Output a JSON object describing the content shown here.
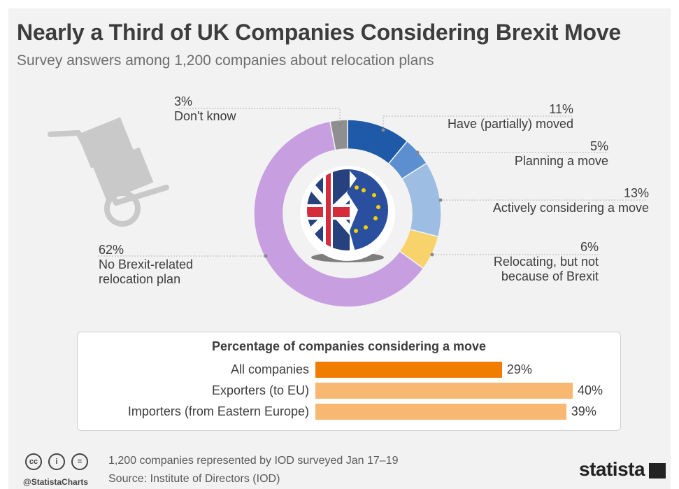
{
  "title": "Nearly a Third of UK Companies Considering Brexit Move",
  "subtitle": "Survey answers among 1,200 companies about relocation plans",
  "chart_data": [
    {
      "type": "pie",
      "variant": "donut",
      "slices": [
        {
          "label": "Have (partially) moved",
          "value": 11,
          "pct_label": "11%",
          "color": "#1f5aa8"
        },
        {
          "label": "Planning a move",
          "value": 5,
          "pct_label": "5%",
          "color": "#5b8fd0"
        },
        {
          "label": "Actively considering a move",
          "value": 13,
          "pct_label": "13%",
          "color": "#9dbde3"
        },
        {
          "label": "Relocating, but not because of Brexit",
          "value": 6,
          "pct_label": "6%",
          "color": "#f8d26a"
        },
        {
          "label": "No Brexit-related relocation plan",
          "value": 62,
          "pct_label": "62%",
          "color": "#c79ee0"
        },
        {
          "label": "Don't know",
          "value": 3,
          "pct_label": "3%",
          "color": "#8f8f8f"
        }
      ]
    },
    {
      "type": "bar",
      "orientation": "horizontal",
      "title": "Percentage of companies considering a move",
      "categories": [
        "All companies",
        "Exporters (to EU)",
        "Importers (from Eastern Europe)"
      ],
      "values": [
        29,
        40,
        39
      ],
      "value_labels": [
        "29%",
        "40%",
        "39%"
      ],
      "colors": [
        "#f07d00",
        "#f9b872",
        "#f9b872"
      ],
      "xlim": [
        0,
        40
      ]
    }
  ],
  "labels": {
    "dont_know": {
      "pct": "3%",
      "text": "Don't know"
    },
    "moved": {
      "pct": "11%",
      "text": "Have (partially) moved"
    },
    "planning": {
      "pct": "5%",
      "text": "Planning a move"
    },
    "considering": {
      "pct": "13%",
      "text": "Actively considering a move"
    },
    "relocating": {
      "pct": "6%",
      "text1": "Relocating, but not",
      "text2": "because of Brexit"
    },
    "none": {
      "pct": "62%",
      "text1": "No Brexit-related",
      "text2": "relocation plan"
    }
  },
  "footer": {
    "note": "1,200 companies represented by IOD surveyed Jan 17–19",
    "source": "Source: Institute of Directors (IOD)",
    "handle": "@StatistaCharts",
    "brand": "statista",
    "cc_icons": [
      "cc",
      "i",
      "="
    ]
  }
}
